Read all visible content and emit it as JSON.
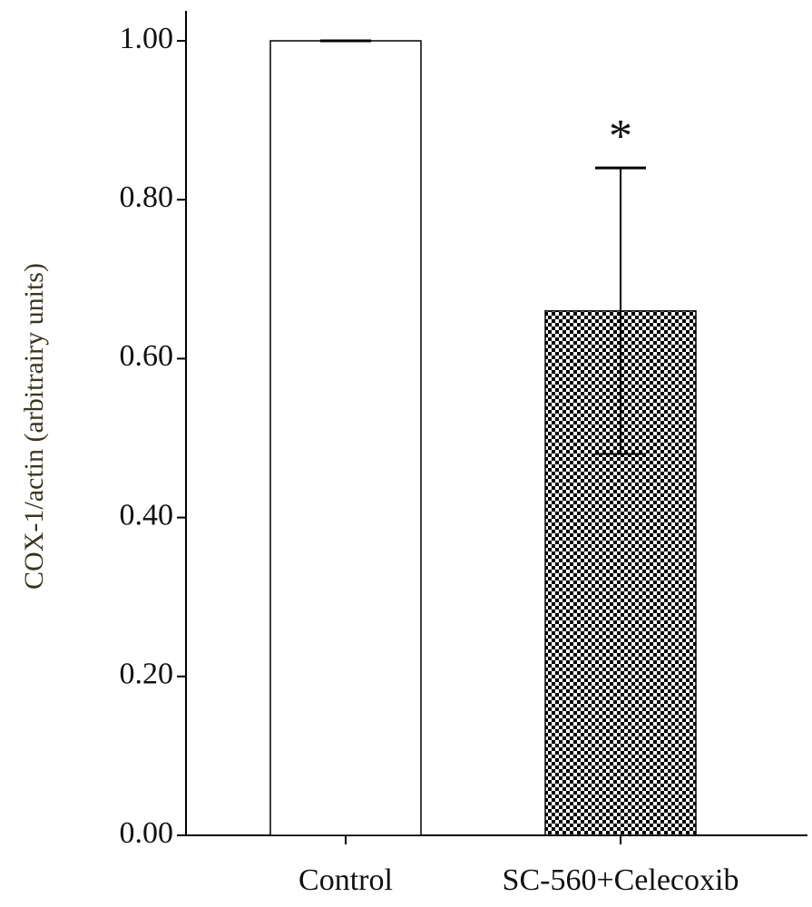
{
  "chart_data": {
    "type": "bar",
    "y_label": "COX-1/actin (arbitrairy units)",
    "categories": [
      "Control",
      "SC-560+Celecoxib"
    ],
    "values": [
      1.0,
      0.66
    ],
    "errors": [
      0,
      0.18
    ],
    "bar_fills": [
      "#ffffff",
      "checkerboard"
    ],
    "annotations": [
      {
        "text": "*",
        "category": 1
      }
    ],
    "ylim": [
      0,
      1.0
    ],
    "yticks": [
      {
        "value": 0,
        "label": "0.00"
      },
      {
        "value": 0.2,
        "label": "0.20"
      },
      {
        "value": 0.4,
        "label": "0.40"
      },
      {
        "value": 0.6,
        "label": "0.60"
      },
      {
        "value": 0.8,
        "label": "0.80"
      },
      {
        "value": 1.0,
        "label": "1.00"
      }
    ]
  }
}
